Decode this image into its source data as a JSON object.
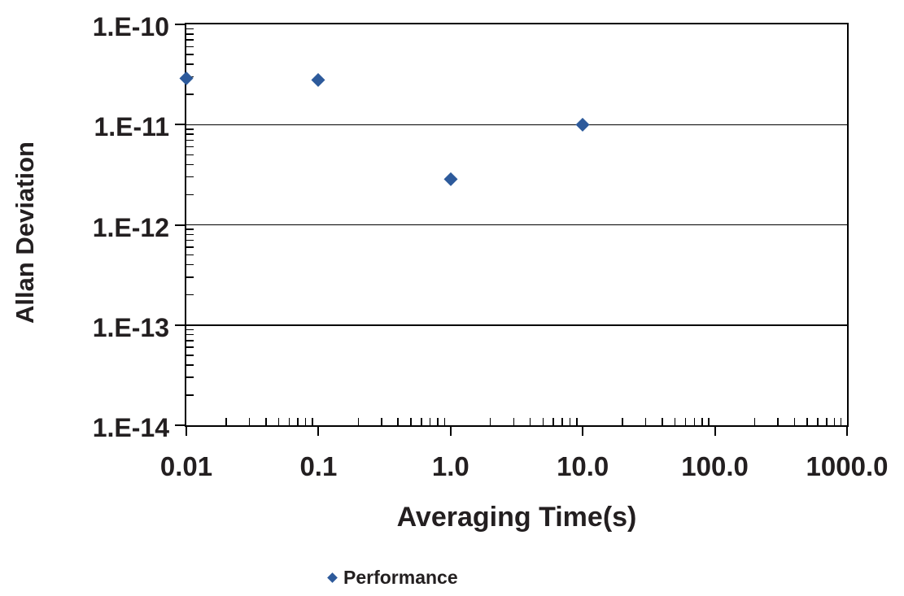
{
  "chart_data": {
    "type": "scatter",
    "title": "",
    "xlabel": "Averaging Time(s)",
    "ylabel": "Allan Deviation",
    "x_scale": "log",
    "y_scale": "log",
    "xlim": [
      0.01,
      1000.0
    ],
    "ylim": [
      1e-14,
      1e-10
    ],
    "x_ticks": {
      "values": [
        0.01,
        0.1,
        1,
        10,
        100,
        1000
      ],
      "labels": [
        "0.01",
        "0.1",
        "1.0",
        "10.0",
        "100.0",
        "1000.0"
      ]
    },
    "y_ticks": {
      "values": [
        1e-10,
        1e-11,
        1e-12,
        1e-13,
        1e-14
      ],
      "labels": [
        "1.E-10",
        "1.E-11",
        "1.E-12",
        "1.E-13",
        "1.E-14"
      ]
    },
    "grid": "horizontal gridlines at each y-axis decade; logarithmic minor ticks inside both axes",
    "legend": {
      "position": "bottom-center",
      "entries": [
        {
          "label": "Performance",
          "marker": "diamond"
        }
      ]
    },
    "series": [
      {
        "name": "Performance",
        "marker": "diamond",
        "color": "#2D5A9B",
        "points": [
          {
            "x": 0.01,
            "y": 2.9e-11
          },
          {
            "x": 0.1,
            "y": 2.8e-11
          },
          {
            "x": 1.0,
            "y": 2.9e-12
          },
          {
            "x": 10.0,
            "y": 1e-11
          }
        ]
      }
    ]
  },
  "colors": {
    "marker_blue": "#2D5A9B",
    "text": "#231F20",
    "axis": "#000000",
    "background": "#FFFFFF"
  }
}
